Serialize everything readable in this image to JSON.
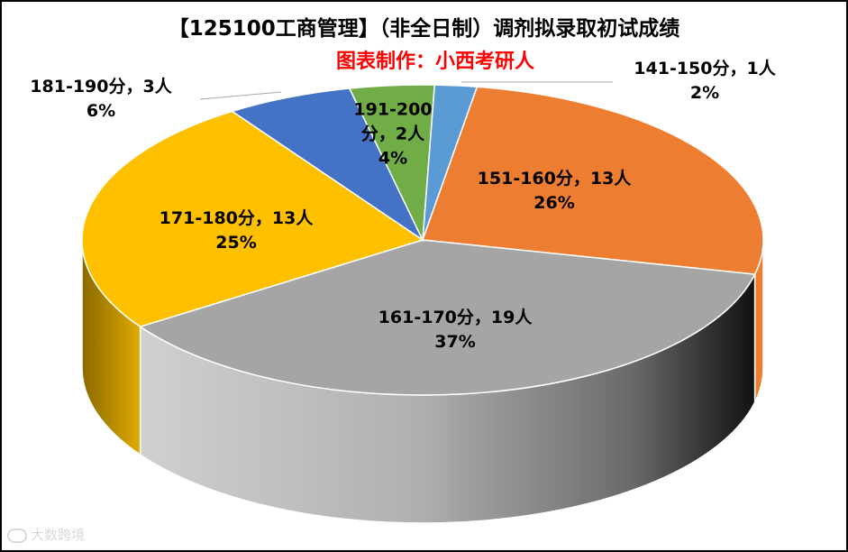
{
  "chart_data": {
    "type": "pie",
    "title": "【125100工商管理】（非全日制）调剂拟录取初试成绩",
    "subtitle": "图表制作：小西考研人",
    "slices": [
      {
        "name": "141-150分",
        "count": 1,
        "count_label": "1人",
        "percent": 2,
        "line1": "141-150分，1人",
        "line2": "2%",
        "color": "#5b9bd5"
      },
      {
        "name": "151-160分",
        "count": 13,
        "count_label": "13人",
        "percent": 26,
        "line1": "151-160分，13人",
        "line2": "26%",
        "color": "#ed7d31"
      },
      {
        "name": "161-170分",
        "count": 19,
        "count_label": "19人",
        "percent": 37,
        "line1": "161-170分，19人",
        "line2": "37%",
        "color": "#a5a5a5"
      },
      {
        "name": "171-180分",
        "count": 13,
        "count_label": "13人",
        "percent": 25,
        "line1": "171-180分，13人",
        "line2": "25%",
        "color": "#ffc000"
      },
      {
        "name": "181-190分",
        "count": 3,
        "count_label": "3人",
        "percent": 6,
        "line1": "181-190分，3人",
        "line2": "6%",
        "color": "#4472c4"
      },
      {
        "name": "191-200分",
        "count": 2,
        "count_label": "2人",
        "percent": 4,
        "line1": "191-200",
        "line1b": "分，2人",
        "line2": "4%",
        "color": "#70ad47"
      }
    ]
  },
  "watermark": "大数跨境"
}
